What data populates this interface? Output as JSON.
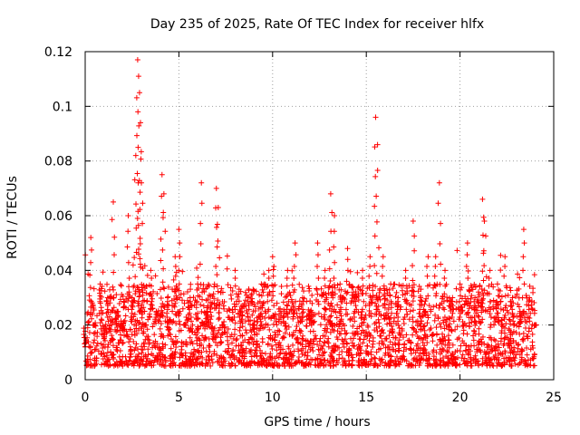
{
  "chart_data": {
    "type": "scatter",
    "title": "Day 235 of 2025, Rate Of TEC Index for receiver hlfx",
    "xlabel": "GPS time / hours",
    "ylabel": "ROTI / TECUs",
    "xlim": [
      0,
      25
    ],
    "ylim": [
      0,
      0.12
    ],
    "x_ticks": [
      0,
      5,
      10,
      15,
      20,
      25
    ],
    "x_tick_labels": [
      "0",
      "5",
      "10",
      "15",
      "20",
      "25"
    ],
    "y_ticks": [
      0,
      0.02,
      0.04,
      0.06,
      0.08,
      0.1,
      0.12
    ],
    "y_tick_labels": [
      "0",
      "0.02",
      "0.04",
      "0.06",
      "0.08",
      "0.1",
      "0.12"
    ],
    "grid": true,
    "marker": "+",
    "marker_color": "#ff0000",
    "series": [
      {
        "name": "ROTI",
        "note": "dense band of points between ~0.005 and ~0.035 TECU/s across 0-24 h; listed points are representative values including the visible peaks",
        "x": [
          0.0,
          0.3,
          0.5,
          0.8,
          1.0,
          1.2,
          1.5,
          1.7,
          2.0,
          2.3,
          2.5,
          2.7,
          2.8,
          2.85,
          2.9,
          2.95,
          3.0,
          3.2,
          3.5,
          3.8,
          4.1,
          4.2,
          4.4,
          4.8,
          5.0,
          5.3,
          5.6,
          6.0,
          6.2,
          6.5,
          6.8,
          7.0,
          7.1,
          7.3,
          7.6,
          8.0,
          8.3,
          8.7,
          9.0,
          9.4,
          9.8,
          10.0,
          10.4,
          10.8,
          11.2,
          11.6,
          12.0,
          12.4,
          12.8,
          13.1,
          13.3,
          13.6,
          14.0,
          14.4,
          14.8,
          15.2,
          15.5,
          15.6,
          15.9,
          16.3,
          16.7,
          17.1,
          17.5,
          17.9,
          18.3,
          18.7,
          18.9,
          19.2,
          19.6,
          20.0,
          20.4,
          20.8,
          21.2,
          21.3,
          21.6,
          22.0,
          22.4,
          22.8,
          23.2,
          23.4,
          23.7,
          24.0
        ],
        "y": [
          0.012,
          0.052,
          0.02,
          0.035,
          0.015,
          0.03,
          0.065,
          0.025,
          0.018,
          0.06,
          0.03,
          0.082,
          0.117,
          0.111,
          0.105,
          0.094,
          0.072,
          0.02,
          0.04,
          0.025,
          0.075,
          0.068,
          0.03,
          0.045,
          0.055,
          0.02,
          0.03,
          0.035,
          0.072,
          0.025,
          0.015,
          0.07,
          0.063,
          0.02,
          0.01,
          0.04,
          0.025,
          0.03,
          0.02,
          0.035,
          0.04,
          0.045,
          0.025,
          0.04,
          0.05,
          0.03,
          0.025,
          0.05,
          0.04,
          0.068,
          0.06,
          0.035,
          0.048,
          0.03,
          0.04,
          0.045,
          0.096,
          0.086,
          0.045,
          0.035,
          0.03,
          0.04,
          0.058,
          0.03,
          0.045,
          0.045,
          0.072,
          0.04,
          0.03,
          0.035,
          0.05,
          0.03,
          0.066,
          0.058,
          0.04,
          0.035,
          0.045,
          0.03,
          0.025,
          0.055,
          0.03,
          0.02
        ]
      }
    ]
  }
}
